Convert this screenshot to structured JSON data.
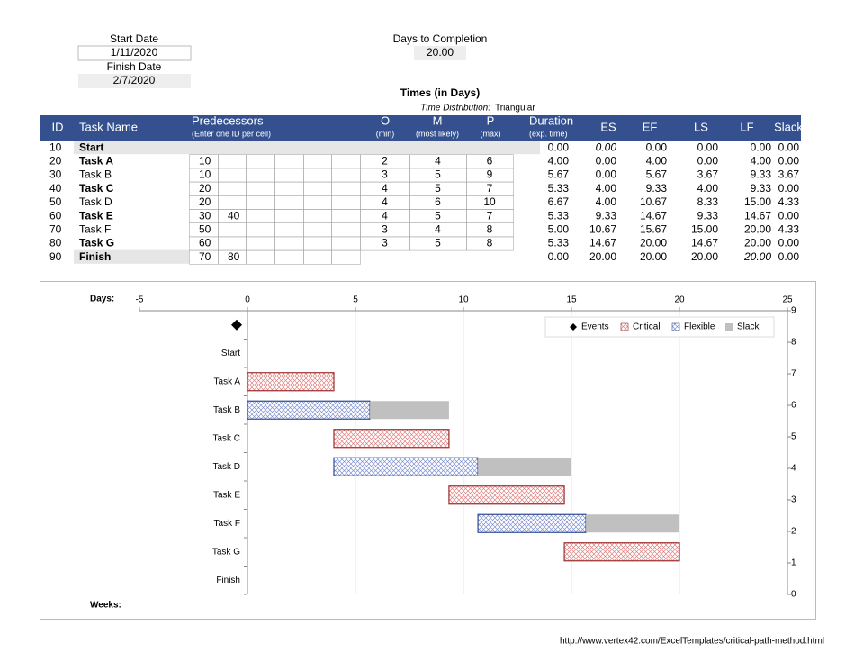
{
  "header": {
    "start_date_label": "Start Date",
    "start_date": "1/11/2020",
    "finish_date_label": "Finish Date",
    "finish_date": "2/7/2020",
    "days_label": "Days to Completion",
    "days": "20.00",
    "times_title": "Times (in Days)",
    "distribution_label": "Time Distribution:",
    "distribution": "Triangular"
  },
  "table": {
    "columns": [
      {
        "title": "ID"
      },
      {
        "title": "Task Name"
      },
      {
        "title": "Predecessors",
        "sub": "(Enter one ID per cell)"
      },
      {
        "title": "O",
        "sub": "(min)"
      },
      {
        "title": "M",
        "sub": "(most likely)"
      },
      {
        "title": "P",
        "sub": "(max)"
      },
      {
        "title": "Duration",
        "sub": "(exp. time)"
      },
      {
        "title": "ES"
      },
      {
        "title": "EF"
      },
      {
        "title": "LS"
      },
      {
        "title": "LF"
      },
      {
        "title": "Slack"
      }
    ],
    "rows": [
      {
        "id": 10,
        "name": "Start",
        "predecessors": [],
        "duration": "0.00",
        "es": "0.00",
        "ef": "0.00",
        "ls": "0.00",
        "lf": "0.00",
        "slack": "0.00"
      },
      {
        "id": 20,
        "name": "Task A",
        "predecessors": [
          10
        ],
        "o": 2,
        "m": 4,
        "p": 6,
        "duration": "4.00",
        "es": "0.00",
        "ef": "4.00",
        "ls": "0.00",
        "lf": "4.00",
        "slack": "0.00"
      },
      {
        "id": 30,
        "name": "Task B",
        "predecessors": [
          10
        ],
        "o": 3,
        "m": 5,
        "p": 9,
        "duration": "5.67",
        "es": "0.00",
        "ef": "5.67",
        "ls": "3.67",
        "lf": "9.33",
        "slack": "3.67"
      },
      {
        "id": 40,
        "name": "Task C",
        "predecessors": [
          20
        ],
        "o": 4,
        "m": 5,
        "p": 7,
        "duration": "5.33",
        "es": "4.00",
        "ef": "9.33",
        "ls": "4.00",
        "lf": "9.33",
        "slack": "0.00"
      },
      {
        "id": 50,
        "name": "Task D",
        "predecessors": [
          20
        ],
        "o": 4,
        "m": 6,
        "p": 10,
        "duration": "6.67",
        "es": "4.00",
        "ef": "10.67",
        "ls": "8.33",
        "lf": "15.00",
        "slack": "4.33"
      },
      {
        "id": 60,
        "name": "Task E",
        "predecessors": [
          30,
          40
        ],
        "o": 4,
        "m": 5,
        "p": 7,
        "duration": "5.33",
        "es": "9.33",
        "ef": "14.67",
        "ls": "9.33",
        "lf": "14.67",
        "slack": "0.00"
      },
      {
        "id": 70,
        "name": "Task F",
        "predecessors": [
          50
        ],
        "o": 3,
        "m": 4,
        "p": 8,
        "duration": "5.00",
        "es": "10.67",
        "ef": "15.67",
        "ls": "15.00",
        "lf": "20.00",
        "slack": "4.33"
      },
      {
        "id": 80,
        "name": "Task G",
        "predecessors": [
          60
        ],
        "o": 3,
        "m": 5,
        "p": 8,
        "duration": "5.33",
        "es": "14.67",
        "ef": "20.00",
        "ls": "14.67",
        "lf": "20.00",
        "slack": "0.00"
      },
      {
        "id": 90,
        "name": "Finish",
        "predecessors": [
          70,
          80
        ],
        "duration": "0.00",
        "es": "20.00",
        "ef": "20.00",
        "ls": "20.00",
        "lf": "20.00",
        "slack": "0.00"
      }
    ]
  },
  "chart_data": {
    "type": "gantt",
    "x_label": "Days:",
    "bottom_label": "Weeks:",
    "categories": [
      null,
      "Start",
      "Task A",
      "Task B",
      "Task C",
      "Task D",
      "Task E",
      "Task F",
      "Task G",
      "Finish"
    ],
    "xlim": [
      -5,
      25
    ],
    "xticks": [
      -5,
      0,
      5,
      10,
      15,
      20,
      25
    ],
    "y2lim": [
      0,
      9
    ],
    "y2ticks": [
      0,
      1,
      2,
      3,
      4,
      5,
      6,
      7,
      8,
      9
    ],
    "grid": true,
    "legend": "top-right",
    "series": [
      {
        "name": "Events",
        "color": "#000000",
        "values": [
          -0.5,
          null,
          null,
          null,
          null,
          null,
          null,
          null,
          null,
          null
        ]
      },
      {
        "name": "Critical",
        "color": "#9b2b2b",
        "start": [
          null,
          null,
          0,
          null,
          4,
          null,
          9.33,
          null,
          14.67,
          null
        ],
        "end": [
          null,
          null,
          4,
          null,
          9.33,
          null,
          14.67,
          null,
          20,
          null
        ]
      },
      {
        "name": "Flexible",
        "color": "#2e4a8f",
        "start": [
          null,
          null,
          null,
          0,
          null,
          4,
          null,
          10.67,
          null,
          null
        ],
        "end": [
          null,
          null,
          null,
          5.67,
          null,
          10.67,
          null,
          15.67,
          null,
          null
        ]
      },
      {
        "name": "Slack",
        "color": "#c0c0c0",
        "start": [
          null,
          null,
          null,
          5.67,
          null,
          10.67,
          null,
          15.67,
          null,
          null
        ],
        "end": [
          null,
          null,
          null,
          9.33,
          null,
          15,
          null,
          20,
          null,
          null
        ]
      }
    ]
  },
  "footer": "http://www.vertex42.com/ExcelTemplates/critical-path-method.html"
}
